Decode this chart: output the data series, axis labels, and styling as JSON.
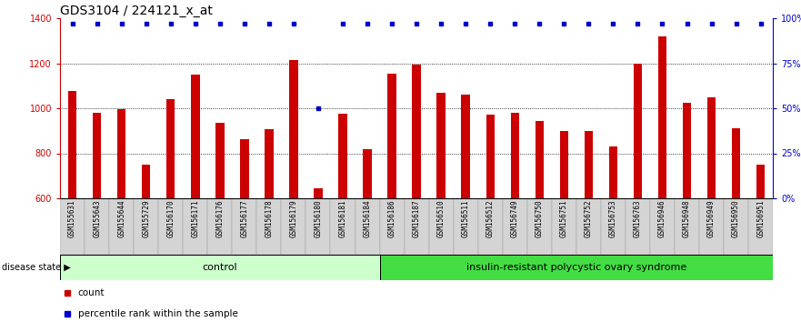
{
  "title": "GDS3104 / 224121_x_at",
  "samples": [
    "GSM155631",
    "GSM155643",
    "GSM155644",
    "GSM155729",
    "GSM156170",
    "GSM156171",
    "GSM156176",
    "GSM156177",
    "GSM156178",
    "GSM156179",
    "GSM156180",
    "GSM156181",
    "GSM156184",
    "GSM156186",
    "GSM156187",
    "GSM156510",
    "GSM156511",
    "GSM156512",
    "GSM156749",
    "GSM156750",
    "GSM156751",
    "GSM156752",
    "GSM156753",
    "GSM156763",
    "GSM156946",
    "GSM156948",
    "GSM156949",
    "GSM156950",
    "GSM156951"
  ],
  "counts": [
    1075,
    980,
    995,
    748,
    1040,
    1148,
    937,
    862,
    908,
    1213,
    643,
    975,
    820,
    1155,
    1195,
    1068,
    1060,
    970,
    980,
    945,
    900,
    898,
    830,
    1200,
    1320,
    1025,
    1048,
    910,
    750
  ],
  "percentile_ranks": [
    97,
    97,
    97,
    97,
    97,
    97,
    97,
    97,
    97,
    97,
    50,
    97,
    97,
    97,
    97,
    97,
    97,
    97,
    97,
    97,
    97,
    97,
    97,
    97,
    97,
    97,
    97,
    97,
    97
  ],
  "ctrl_count": 13,
  "group_labels": [
    "control",
    "insulin-resistant polycystic ovary syndrome"
  ],
  "ctrl_color": "#ccffcc",
  "disease_color": "#44dd44",
  "bar_color": "#cc0000",
  "blue_dot_color": "#0000cc",
  "ylim_left": [
    600,
    1400
  ],
  "ylim_right": [
    0,
    100
  ],
  "yticks_left": [
    600,
    800,
    1000,
    1200,
    1400
  ],
  "yticks_right": [
    0,
    25,
    50,
    75,
    100
  ],
  "grid_values": [
    800,
    1000,
    1200
  ],
  "title_fontsize": 10,
  "tick_fontsize": 7,
  "label_fontsize": 8,
  "legend_fontsize": 7.5
}
